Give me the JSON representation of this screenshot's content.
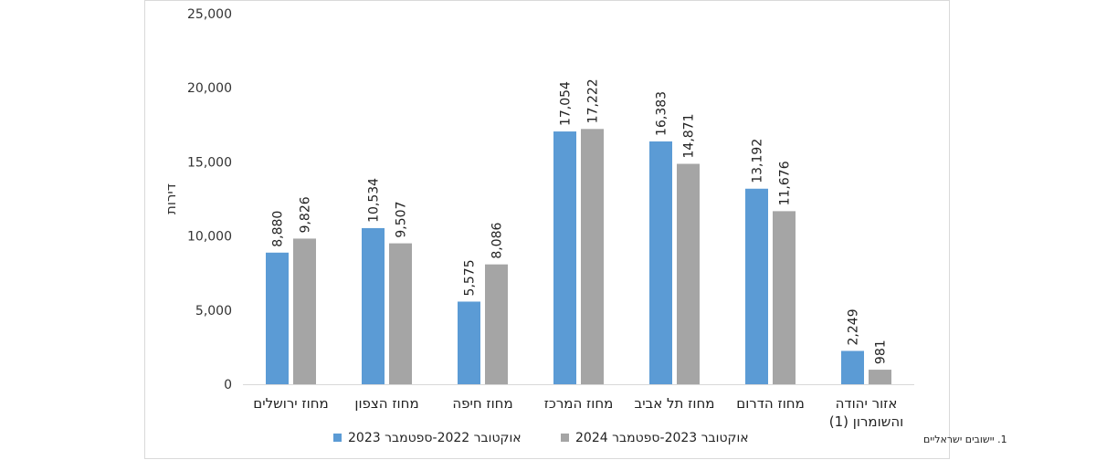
{
  "chart_data": {
    "type": "bar",
    "ylabel": "דירות",
    "ylim": [
      0,
      25000
    ],
    "yticks": [
      "0",
      "5,000",
      "10,000",
      "15,000",
      "20,000",
      "25,000"
    ],
    "ytick_values": [
      0,
      5000,
      10000,
      15000,
      20000,
      25000
    ],
    "grid": false,
    "legend_position": "bottom",
    "categories": [
      [
        "מחוז ירושלים"
      ],
      [
        "מחוז הצפון"
      ],
      [
        "מחוז חיפה"
      ],
      [
        "מחוז המרכז"
      ],
      [
        "מחוז תל אביב"
      ],
      [
        "מחוז הדרום"
      ],
      [
        "אזור יהודה",
        "והשומרון (1)"
      ]
    ],
    "series": [
      {
        "name": "אוקטובר 2022-ספטמבר 2023",
        "color": "#5b9bd5",
        "values": [
          8880,
          10534,
          5575,
          17054,
          16383,
          13192,
          2249
        ],
        "labels": [
          "8,880",
          "10,534",
          "5,575",
          "17,054",
          "16,383",
          "13,192",
          "2,249"
        ]
      },
      {
        "name": "אוקטובר 2023-ספטמבר 2024",
        "color": "#a5a5a5",
        "values": [
          9826,
          9507,
          8086,
          17222,
          14871,
          11676,
          981
        ],
        "labels": [
          "9,826",
          "9,507",
          "8,086",
          "17,222",
          "14,871",
          "11,676",
          "981"
        ]
      }
    ],
    "footnote": "1. יישובים ישראליים"
  }
}
